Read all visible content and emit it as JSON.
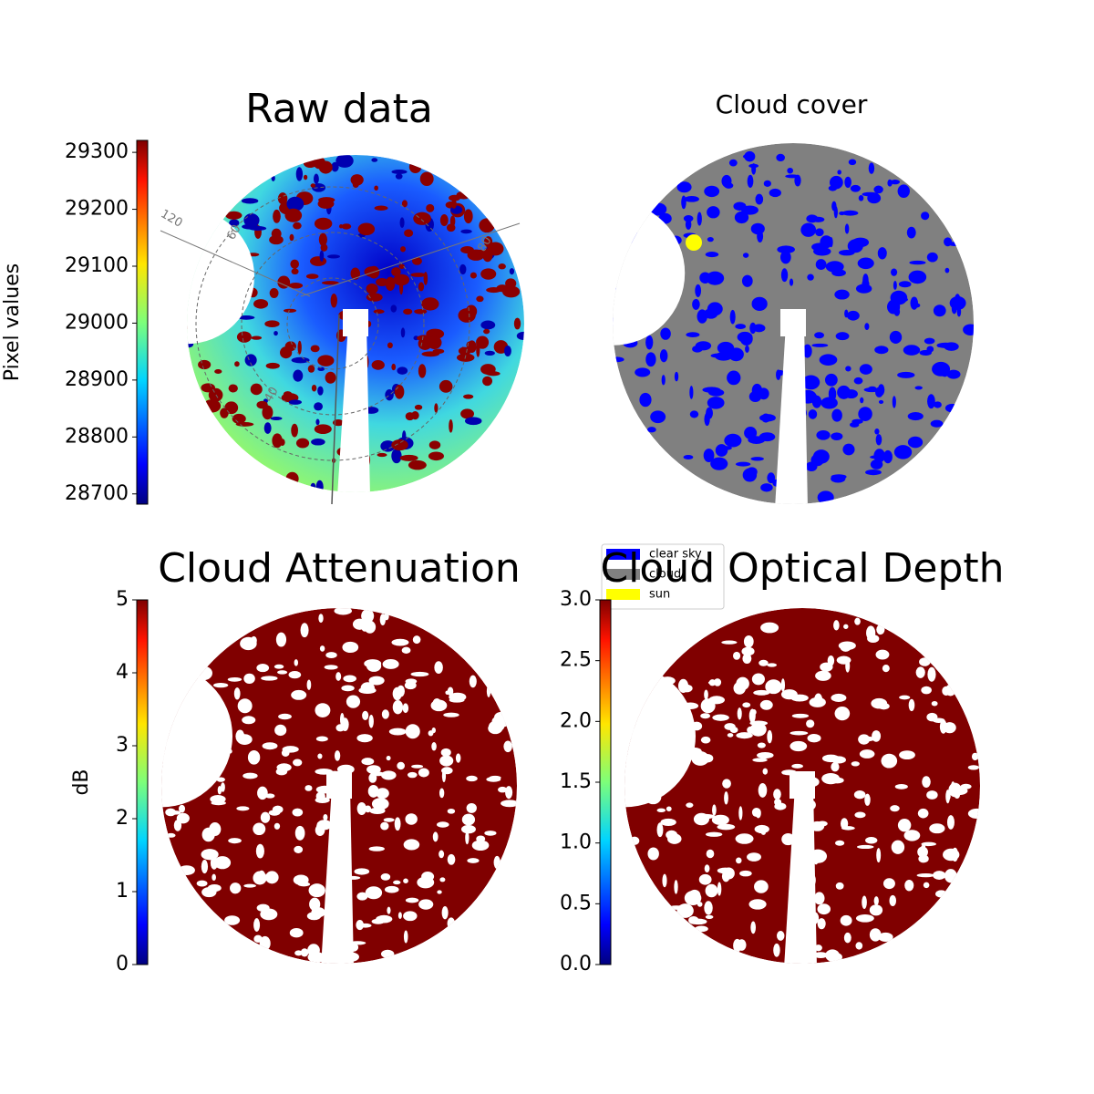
{
  "chart_data": [
    {
      "type": "image",
      "title": "Raw data",
      "colormap": "jet",
      "colorbar": {
        "label": "Pixel values",
        "ylim": [
          28682,
          29321
        ],
        "yticks": [
          28700,
          28800,
          28900,
          29000,
          29100,
          29200,
          29300
        ]
      },
      "annotations": [
        "120",
        "60",
        "40",
        "80"
      ]
    },
    {
      "type": "image",
      "title": "Cloud cover",
      "series": [
        {
          "name": "clear sky",
          "color": "#0000ff"
        },
        {
          "name": "cloud",
          "color": "#808080"
        },
        {
          "name": "sun",
          "color": "#ffff00"
        }
      ],
      "legend": "lower left"
    },
    {
      "type": "image",
      "title": "Cloud Attenuation",
      "colormap": "jet",
      "colorbar": {
        "label": "dB",
        "ylim": [
          0,
          5
        ],
        "yticks": [
          0,
          1,
          2,
          3,
          4,
          5
        ]
      }
    },
    {
      "type": "image",
      "title": "Cloud Optical Depth",
      "colormap": "jet",
      "colorbar": {
        "ylim": [
          0,
          3
        ],
        "yticks": [
          {
            "value": 0,
            "label": "0.0"
          },
          {
            "value": 0.5,
            "label": "0.5"
          },
          {
            "value": 1,
            "label": "1.0"
          },
          {
            "value": 1.5,
            "label": "1.5"
          },
          {
            "value": 2,
            "label": "2.0"
          },
          {
            "value": 2.5,
            "label": "2.5"
          },
          {
            "value": 3,
            "label": "3.0"
          }
        ]
      }
    }
  ]
}
